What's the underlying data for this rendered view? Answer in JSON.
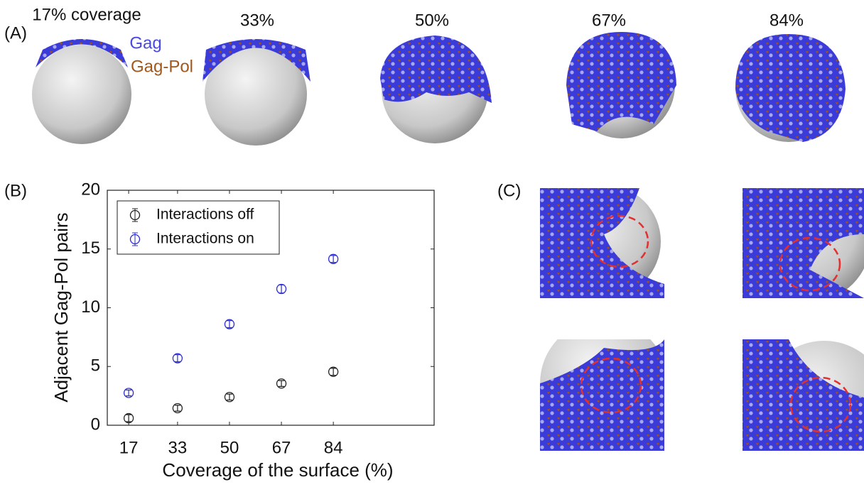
{
  "figure": {
    "panel_labels": [
      "(A)",
      "(B)",
      "(C)"
    ],
    "coverage_labels": [
      "17% coverage",
      "33%",
      "50%",
      "67%",
      "84%"
    ],
    "legend_gag": "Gag",
    "legend_gag_pol": "Gag-Pol"
  },
  "chart_data": {
    "type": "scatter",
    "error_bars": true,
    "xlabel": "Coverage of the surface (%)",
    "ylabel": "Adjacent Gag-Pol pairs",
    "x": [
      17,
      33,
      50,
      67,
      84
    ],
    "series": [
      {
        "name": "Interactions off",
        "color": "#222222",
        "values": [
          0.6,
          1.45,
          2.4,
          3.55,
          4.55
        ],
        "errors": [
          0.3,
          0.25,
          0.25,
          0.25,
          0.3
        ]
      },
      {
        "name": "Interactions on",
        "color": "#2b2bd6",
        "values": [
          2.75,
          5.7,
          8.6,
          11.6,
          14.15
        ],
        "errors": [
          0.25,
          0.3,
          0.3,
          0.35,
          0.3
        ]
      }
    ],
    "xlim": [
      10,
      117
    ],
    "xticks": [
      17,
      33,
      50,
      67,
      84
    ],
    "ylim": [
      0,
      20
    ],
    "yticks": [
      0,
      5,
      10,
      15,
      20
    ],
    "legend": "upper left",
    "grid": false
  }
}
